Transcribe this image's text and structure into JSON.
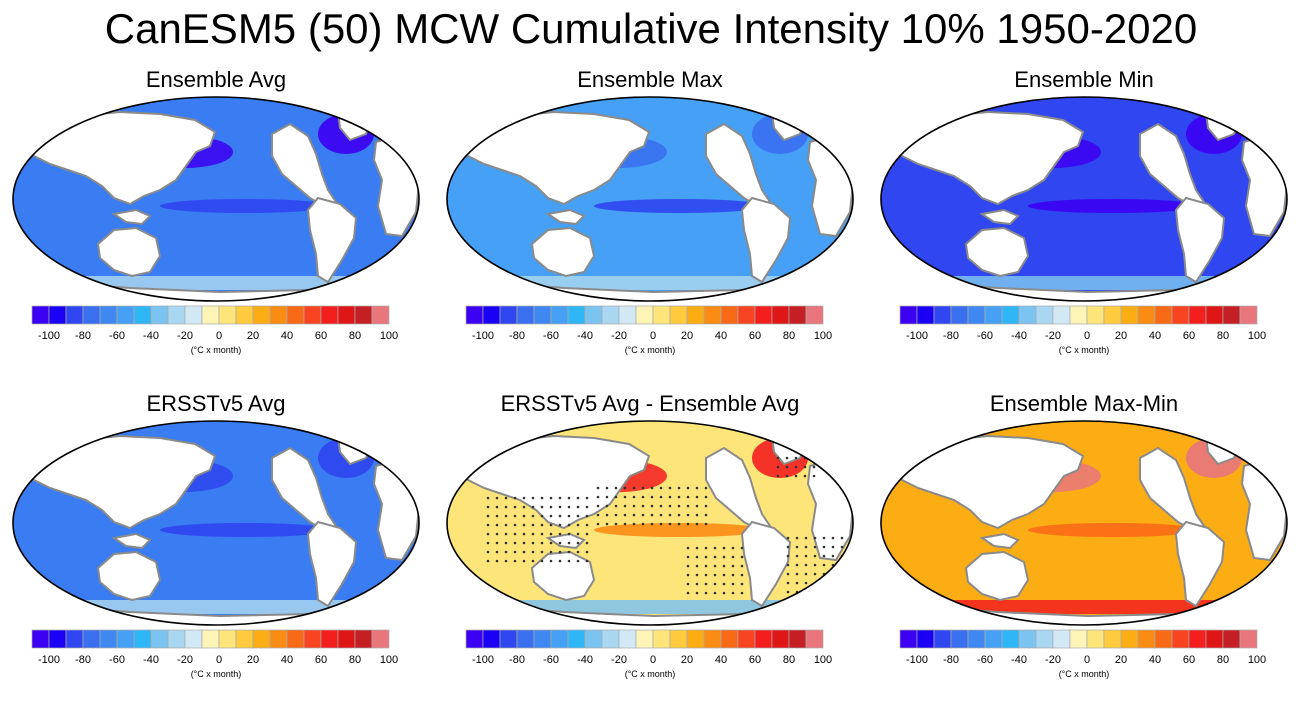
{
  "title": "CanESM5 (50) MCW Cumulative Intensity 10% 1950-2020",
  "colorbar": {
    "colors": [
      "#3c00f2",
      "#1a00f5",
      "#2f46f0",
      "#3a6ff0",
      "#3f88f2",
      "#46a0f5",
      "#2fb6f7",
      "#7bc3f0",
      "#a9d6f0",
      "#d3e8f5",
      "#fdf4b8",
      "#fde57a",
      "#fdcb3d",
      "#fcad14",
      "#fb8c13",
      "#f96a16",
      "#f84420",
      "#f31e1e",
      "#df1616",
      "#c31f24",
      "#e8767c"
    ],
    "tick_labels": [
      "-100",
      "-80",
      "-60",
      "-40",
      "-20",
      "0",
      "20",
      "40",
      "60",
      "80",
      "100"
    ],
    "units": "(°C x month)"
  },
  "panels": [
    {
      "title": "Ensemble Avg",
      "bg": "#3a7cf1",
      "patch": "#3c00f2",
      "band": "#2f46f0",
      "south": "#a9d6f0",
      "stipple": false
    },
    {
      "title": "Ensemble Max",
      "bg": "#46a0f5",
      "patch": "#3a6ff0",
      "band": "#2f46f0",
      "south": "#a9d6f0",
      "stipple": false
    },
    {
      "title": "Ensemble Min",
      "bg": "#2f46f0",
      "patch": "#3c00f2",
      "band": "#3c00f2",
      "south": "#7bc3f0",
      "stipple": false
    },
    {
      "title": "ERSSTv5 Avg",
      "bg": "#3a7cf1",
      "patch": "#2f46f0",
      "band": "#2f46f0",
      "south": "#a9d6f0",
      "stipple": false
    },
    {
      "title": "ERSSTv5 Avg - Ensemble Avg",
      "bg": "#fde57a",
      "patch": "#f31e1e",
      "band": "#fb8c13",
      "south": "#7bc3f0",
      "stipple": true
    },
    {
      "title": "Ensemble Max-Min",
      "bg": "#fcad14",
      "patch": "#e8767c",
      "band": "#f96a16",
      "south": "#f31e1e",
      "stipple": false
    }
  ]
}
